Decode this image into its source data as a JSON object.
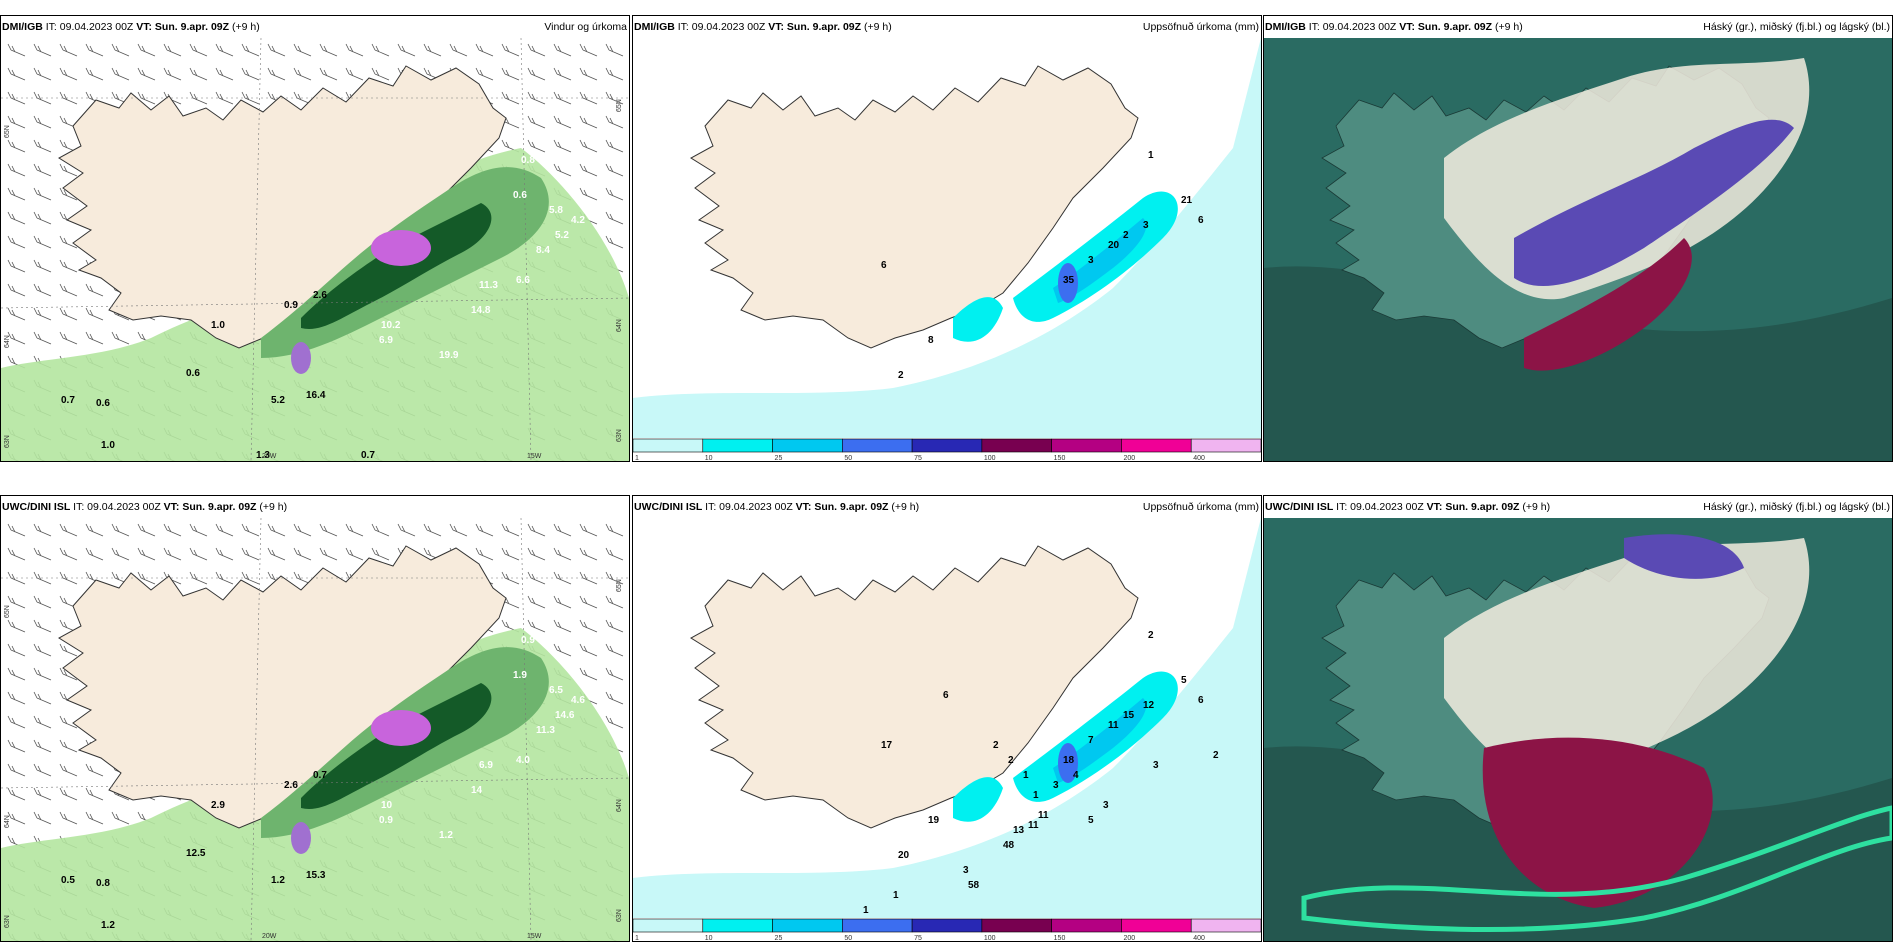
{
  "panels": [
    {
      "model": "DMI/IGB",
      "it": "IT: 09.04.2023 00Z",
      "vt": "VT: Sun. 9.apr. 09Z",
      "lead": "(+9 h)",
      "title": "Vindur og úrkoma",
      "type": "wind",
      "axis_labels": [
        "65N",
        "64N",
        "63N",
        "20W",
        "15W",
        "65N",
        "64N",
        "63N"
      ],
      "values": [
        "0.8",
        "0.6",
        "5.8",
        "4.2",
        "5.2",
        "8.4",
        "6.6",
        "11.3",
        "14.8",
        "10.2",
        "6.9",
        "19.9",
        "0.9",
        "1.0",
        "0.6",
        "2.6",
        "0.7",
        "0.6",
        "1.0",
        "5.2",
        "16.4",
        "1.3",
        "0.7"
      ]
    },
    {
      "model": "DMI/IGB",
      "it": "IT: 09.04.2023 00Z",
      "vt": "VT: Sun. 9.apr. 09Z",
      "lead": "(+9 h)",
      "title": "Uppsöfnuð úrkoma (mm)",
      "type": "precip",
      "values": [
        "1",
        "21",
        "6",
        "3",
        "2",
        "20",
        "3",
        "35",
        "2",
        "8",
        "6"
      ]
    },
    {
      "model": "DMI/IGB",
      "it": "IT: 09.04.2023 00Z",
      "vt": "VT: Sun. 9.apr. 09Z",
      "lead": "(+9 h)",
      "title": "Háský (gr.), miðský (fj.bl.) og lágský (bl.)",
      "type": "cloud"
    },
    {
      "model": "UWC/DINI ISL",
      "it": "IT: 09.04.2023 00Z",
      "vt": "VT: Sun. 9.apr. 09Z",
      "lead": "(+9 h)",
      "title": "",
      "type": "wind",
      "axis_labels": [
        "65N",
        "64N",
        "63N",
        "20W",
        "15W",
        "65N",
        "64N",
        "63N"
      ],
      "values": [
        "0.9",
        "1.9",
        "6.5",
        "4.6",
        "14.6",
        "11.3",
        "4.0",
        "6.9",
        "14",
        "10",
        "0.9",
        "1.2",
        "2.6",
        "2.9",
        "12.5",
        "0.7",
        "0.5",
        "0.8",
        "1.2",
        "1.2",
        "15.3"
      ]
    },
    {
      "model": "UWC/DINI ISL",
      "it": "IT: 09.04.2023 00Z",
      "vt": "VT: Sun. 9.apr. 09Z",
      "lead": "(+9 h)",
      "title": "Uppsöfnuð úrkoma (mm)",
      "type": "precip",
      "values": [
        "2",
        "5",
        "6",
        "12",
        "15",
        "11",
        "7",
        "18",
        "20",
        "19",
        "17",
        "6",
        "2",
        "2",
        "1",
        "1",
        "2",
        "3",
        "3",
        "5",
        "4",
        "3",
        "11",
        "11",
        "13",
        "48",
        "3",
        "1",
        "1",
        "58"
      ]
    },
    {
      "model": "UWC/DINI ISL",
      "it": "IT: 09.04.2023 00Z",
      "vt": "VT: Sun. 9.apr. 09Z",
      "lead": "(+9 h)",
      "title": "Háský (gr.), miðský (fj.bl.) og lágský (bl.)",
      "type": "cloud"
    }
  ],
  "colorbar": {
    "labels": [
      "1",
      "10",
      "25",
      "50",
      "75",
      "100",
      "150",
      "200",
      "400"
    ],
    "colors": [
      "#c8f8f8",
      "#00f0f0",
      "#00c8f0",
      "#3c6ef0",
      "#2828b4",
      "#780050",
      "#b40082",
      "#f00096",
      "#f0b4f0"
    ]
  },
  "colors": {
    "land": "#f7ebdc",
    "sea": "#ffffff",
    "green_light": "#b4e6a0",
    "green_mid": "#6eb46e",
    "green_dark": "#145a28",
    "cloud_base": "#2a6b62",
    "cloud_purple": "#5a4ab4",
    "cloud_red": "#8c1446"
  }
}
